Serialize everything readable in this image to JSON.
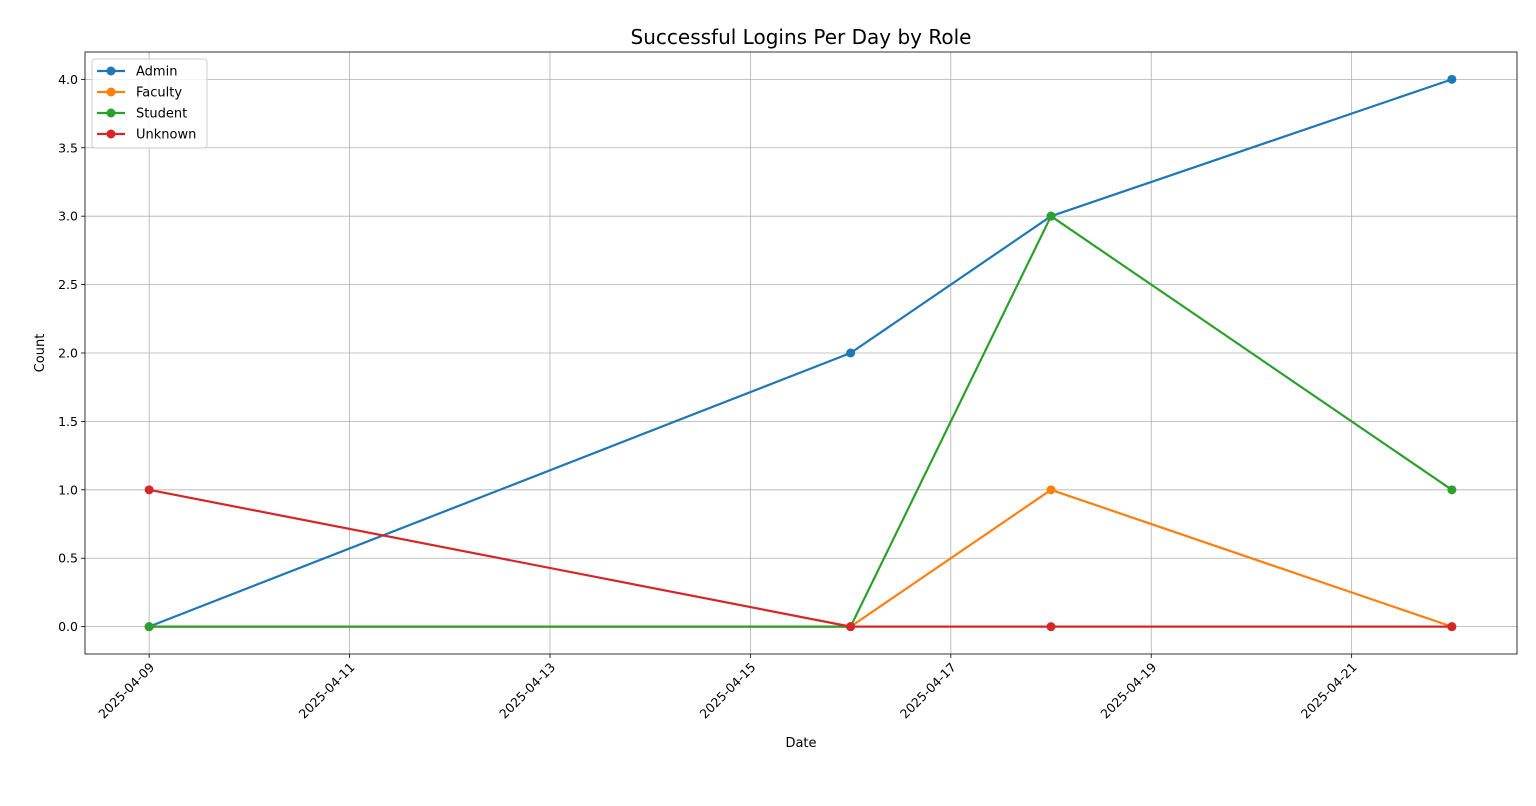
{
  "chart_data": {
    "type": "line",
    "title": "Successful Logins Per Day by Role",
    "xlabel": "Date",
    "ylabel": "Count",
    "x": [
      "2025-04-09",
      "2025-04-16",
      "2025-04-18",
      "2025-04-22"
    ],
    "xlim": [
      "2025-04-08.36",
      "2025-04-22.65"
    ],
    "x_ticks": [
      "2025-04-09",
      "2025-04-11",
      "2025-04-13",
      "2025-04-15",
      "2025-04-17",
      "2025-04-19",
      "2025-04-21"
    ],
    "ylim": [
      -0.2,
      4.2
    ],
    "y_ticks": [
      "0.0",
      "0.5",
      "1.0",
      "1.5",
      "2.0",
      "2.5",
      "3.0",
      "3.5",
      "4.0"
    ],
    "grid": true,
    "legend_position": "top-left",
    "series": [
      {
        "name": "Admin",
        "color": "#1f77b4",
        "values": [
          0,
          2,
          3,
          4
        ]
      },
      {
        "name": "Faculty",
        "color": "#ff7f0e",
        "values": [
          0,
          0,
          1,
          0
        ]
      },
      {
        "name": "Student",
        "color": "#2ca02c",
        "values": [
          0,
          0,
          3,
          1
        ]
      },
      {
        "name": "Unknown",
        "color": "#d62728",
        "values": [
          1,
          0,
          0,
          0
        ]
      }
    ]
  }
}
